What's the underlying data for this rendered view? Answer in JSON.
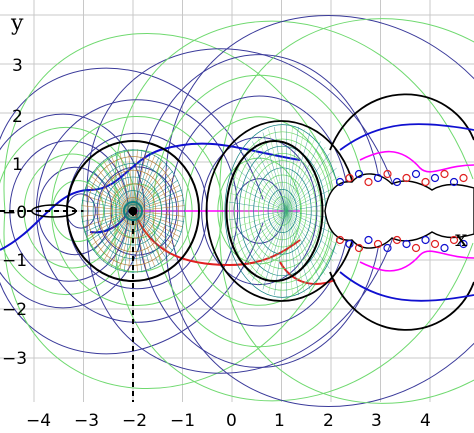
{
  "axes": {
    "x_label": "x",
    "y_label": "y",
    "x_ticks": [
      "−4",
      "−3",
      "−2",
      "−1",
      "0",
      "1",
      "2",
      "3",
      "4"
    ],
    "y_ticks": [
      "3",
      "2",
      "1",
      "−0",
      "−1",
      "−2",
      "−3"
    ]
  },
  "diagram": {
    "xlim": [
      -4.3,
      4.7
    ],
    "ylim": [
      -4.0,
      4.3
    ],
    "grid": true,
    "marked_point": [
      -2,
      0
    ],
    "colors": {
      "grid": "#c8c8c8",
      "level_curves": "#3a3a9a",
      "field_lines": "#6fd96f",
      "ray": "#ff00ff",
      "red_curve": "#e02020",
      "blue_curve": "#1010d0",
      "black_curve": "#000000",
      "radial_brown": "#b07a30",
      "radial_teal": "#108080"
    }
  }
}
